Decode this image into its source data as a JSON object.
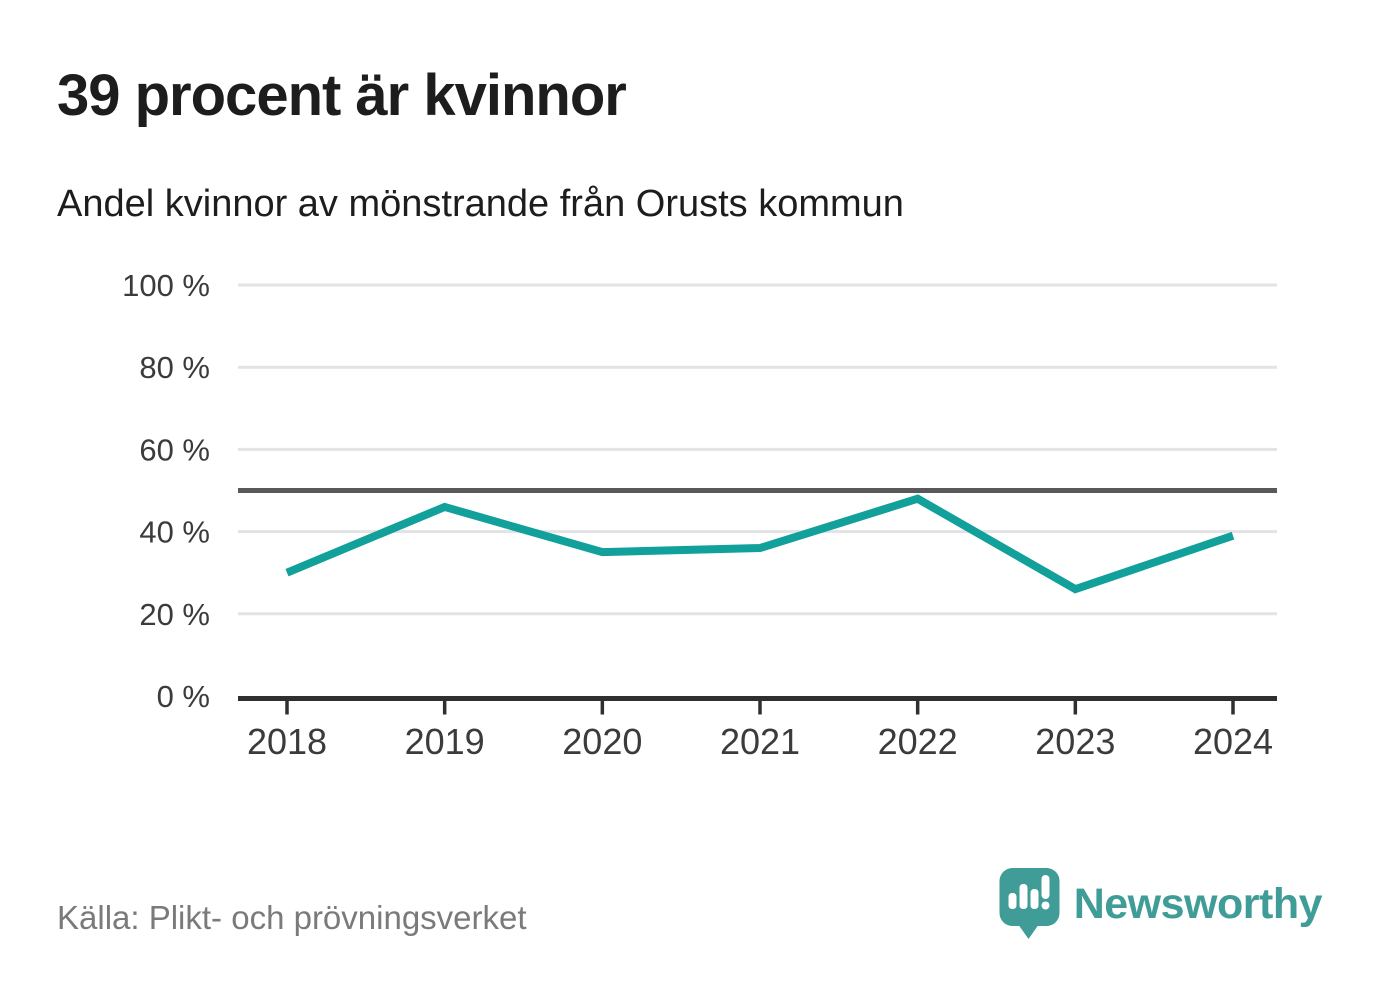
{
  "header": {
    "title": "39 procent är kvinnor",
    "subtitle": "Andel kvinnor av mönstrande från Orusts kommun"
  },
  "chart_data": {
    "type": "line",
    "title": "39 procent är kvinnor",
    "subtitle": "Andel kvinnor av mönstrande från Orusts kommun",
    "x": [
      "2018",
      "2019",
      "2020",
      "2021",
      "2022",
      "2023",
      "2024"
    ],
    "series": [
      {
        "name": "Andel kvinnor av mönstrande",
        "values": [
          30,
          46,
          35,
          36,
          48,
          26,
          39
        ]
      }
    ],
    "unit": "%",
    "ylim": [
      0,
      100
    ],
    "yticks": [
      {
        "value": 0,
        "label": "0 %"
      },
      {
        "value": 20,
        "label": "20 %"
      },
      {
        "value": 40,
        "label": "40 %"
      },
      {
        "value": 60,
        "label": "60 %"
      },
      {
        "value": 80,
        "label": "80 %"
      },
      {
        "value": 100,
        "label": "100 %"
      }
    ],
    "reference_line": {
      "value": 50
    },
    "grid": "horizontal",
    "legend": "none",
    "xlabel": "",
    "ylabel": ""
  },
  "footer": {
    "source": "Källa: Plikt- och prövningsverket",
    "brand": "Newsworthy"
  },
  "icons": {
    "logo": "newsworthy-speech-bubble-bar-chart-icon"
  },
  "colors": {
    "background": "#ffffff",
    "title": "#1d1d1d",
    "line": "#12a09a",
    "grid": "#e3e3e3",
    "reference": "#59595b",
    "axis": "#2f2f2f",
    "tick_label": "#3b3b3b",
    "source": "#7a7a7a",
    "brand": "#3f9c96"
  }
}
